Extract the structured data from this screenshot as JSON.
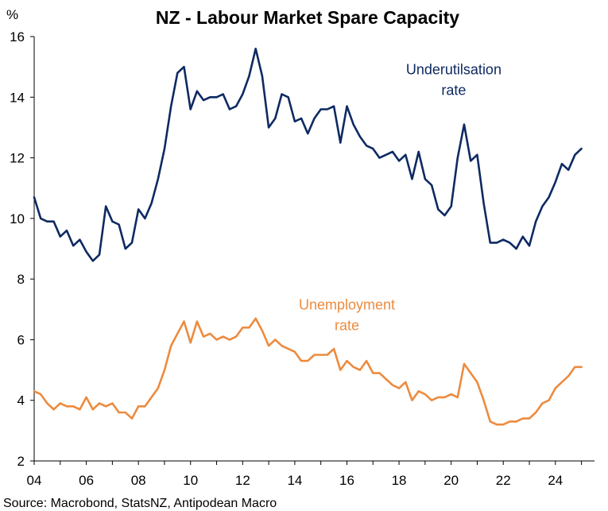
{
  "chart_data": {
    "type": "line",
    "title": "NZ - Labour Market Spare Capacity",
    "ylabel": "%",
    "xlim": [
      2004.0,
      2025.5
    ],
    "ylim": [
      2,
      16
    ],
    "xticks": [
      2004,
      2006,
      2008,
      2010,
      2012,
      2014,
      2016,
      2018,
      2020,
      2022,
      2024
    ],
    "xtick_labels": [
      "04",
      "06",
      "08",
      "10",
      "12",
      "14",
      "16",
      "18",
      "20",
      "22",
      "24"
    ],
    "yticks": [
      2,
      4,
      6,
      8,
      10,
      12,
      14,
      16
    ],
    "grid": false,
    "series": [
      {
        "name": "Underutilsation rate",
        "label_lines": [
          "Underutilsation",
          "rate"
        ],
        "color": "#0e2a62",
        "x": [
          2004.0,
          2004.25,
          2004.5,
          2004.75,
          2005.0,
          2005.25,
          2005.5,
          2005.75,
          2006.0,
          2006.25,
          2006.5,
          2006.75,
          2007.0,
          2007.25,
          2007.5,
          2007.75,
          2008.0,
          2008.25,
          2008.5,
          2008.75,
          2009.0,
          2009.25,
          2009.5,
          2009.75,
          2010.0,
          2010.25,
          2010.5,
          2010.75,
          2011.0,
          2011.25,
          2011.5,
          2011.75,
          2012.0,
          2012.25,
          2012.5,
          2012.75,
          2013.0,
          2013.25,
          2013.5,
          2013.75,
          2014.0,
          2014.25,
          2014.5,
          2014.75,
          2015.0,
          2015.25,
          2015.5,
          2015.75,
          2016.0,
          2016.25,
          2016.5,
          2016.75,
          2017.0,
          2017.25,
          2017.5,
          2017.75,
          2018.0,
          2018.25,
          2018.5,
          2018.75,
          2019.0,
          2019.25,
          2019.5,
          2019.75,
          2020.0,
          2020.25,
          2020.5,
          2020.75,
          2021.0,
          2021.25,
          2021.5,
          2021.75,
          2022.0,
          2022.25,
          2022.5,
          2022.75,
          2023.0,
          2023.25,
          2023.5,
          2023.75,
          2024.0,
          2024.25,
          2024.5,
          2024.75,
          2025.0
        ],
        "y": [
          10.7,
          10.0,
          9.9,
          9.9,
          9.4,
          9.6,
          9.1,
          9.3,
          8.9,
          8.6,
          8.8,
          10.4,
          9.9,
          9.8,
          9.0,
          9.2,
          10.3,
          10.0,
          10.5,
          11.3,
          12.3,
          13.7,
          14.8,
          15.0,
          13.6,
          14.2,
          13.9,
          14.0,
          14.0,
          14.1,
          13.6,
          13.7,
          14.1,
          14.7,
          15.6,
          14.7,
          13.0,
          13.3,
          14.1,
          14.0,
          13.2,
          13.3,
          12.8,
          13.3,
          13.6,
          13.6,
          13.7,
          12.5,
          13.7,
          13.1,
          12.7,
          12.4,
          12.3,
          12.0,
          12.1,
          12.2,
          11.9,
          12.1,
          11.3,
          12.2,
          11.3,
          11.1,
          10.3,
          10.1,
          10.4,
          12.0,
          13.1,
          11.9,
          12.1,
          10.5,
          9.2,
          9.2,
          9.3,
          9.2,
          9.0,
          9.4,
          9.1,
          9.9,
          10.4,
          10.7,
          11.2,
          11.8,
          11.6,
          12.1,
          12.3
        ]
      },
      {
        "name": "Unemployment rate",
        "label_lines": [
          "Unemployment",
          "rate"
        ],
        "color": "#ec8b3f",
        "x": [
          2004.0,
          2004.25,
          2004.5,
          2004.75,
          2005.0,
          2005.25,
          2005.5,
          2005.75,
          2006.0,
          2006.25,
          2006.5,
          2006.75,
          2007.0,
          2007.25,
          2007.5,
          2007.75,
          2008.0,
          2008.25,
          2008.5,
          2008.75,
          2009.0,
          2009.25,
          2009.5,
          2009.75,
          2010.0,
          2010.25,
          2010.5,
          2010.75,
          2011.0,
          2011.25,
          2011.5,
          2011.75,
          2012.0,
          2012.25,
          2012.5,
          2012.75,
          2013.0,
          2013.25,
          2013.5,
          2013.75,
          2014.0,
          2014.25,
          2014.5,
          2014.75,
          2015.0,
          2015.25,
          2015.5,
          2015.75,
          2016.0,
          2016.25,
          2016.5,
          2016.75,
          2017.0,
          2017.25,
          2017.5,
          2017.75,
          2018.0,
          2018.25,
          2018.5,
          2018.75,
          2019.0,
          2019.25,
          2019.5,
          2019.75,
          2020.0,
          2020.25,
          2020.5,
          2020.75,
          2021.0,
          2021.25,
          2021.5,
          2021.75,
          2022.0,
          2022.25,
          2022.5,
          2022.75,
          2023.0,
          2023.25,
          2023.5,
          2023.75,
          2024.0,
          2024.25,
          2024.5,
          2024.75,
          2025.0
        ],
        "y": [
          4.3,
          4.2,
          3.9,
          3.7,
          3.9,
          3.8,
          3.8,
          3.7,
          4.1,
          3.7,
          3.9,
          3.8,
          3.9,
          3.6,
          3.6,
          3.4,
          3.8,
          3.8,
          4.1,
          4.4,
          5.0,
          5.8,
          6.2,
          6.6,
          5.9,
          6.6,
          6.1,
          6.2,
          6.0,
          6.1,
          6.0,
          6.1,
          6.4,
          6.4,
          6.7,
          6.3,
          5.8,
          6.0,
          5.8,
          5.7,
          5.6,
          5.3,
          5.3,
          5.5,
          5.5,
          5.5,
          5.7,
          5.0,
          5.3,
          5.1,
          5.0,
          5.3,
          4.9,
          4.9,
          4.7,
          4.5,
          4.4,
          4.6,
          4.0,
          4.3,
          4.2,
          4.0,
          4.1,
          4.1,
          4.2,
          4.1,
          5.2,
          4.9,
          4.6,
          4.0,
          3.3,
          3.2,
          3.2,
          3.3,
          3.3,
          3.4,
          3.4,
          3.6,
          3.9,
          4.0,
          4.4,
          4.6,
          4.8,
          5.1,
          5.1
        ]
      }
    ],
    "source": "Source: Macrobond, StatsNZ, Antipodean Macro"
  }
}
